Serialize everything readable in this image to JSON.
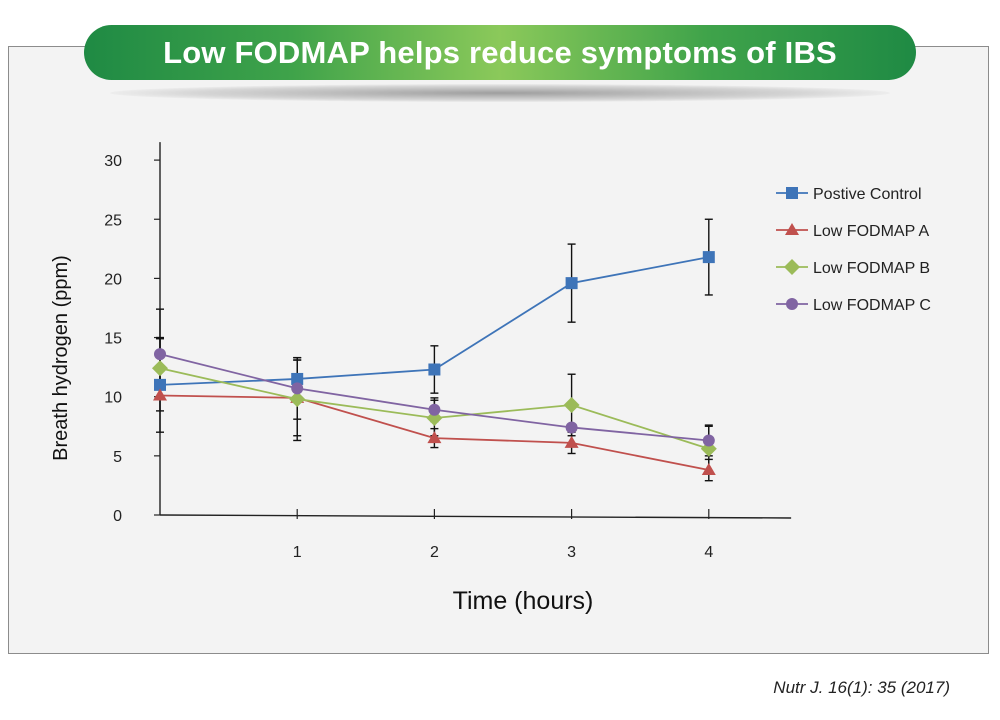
{
  "banner": {
    "title": "Low FODMAP helps reduce symptoms of IBS"
  },
  "citation": "Nutr J. 16(1): 35 (2017)",
  "chart_data": {
    "type": "line",
    "title": "Low FODMAP helps reduce symptoms of IBS",
    "xlabel": "Time (hours)",
    "ylabel": "Breath hydrogen (ppm)",
    "x": [
      0,
      1,
      2,
      3,
      4
    ],
    "x_tick_labels": [
      "1",
      "2",
      "3",
      "4"
    ],
    "y_ticks": [
      0,
      5,
      10,
      15,
      20,
      25,
      30
    ],
    "ylim": [
      0,
      30
    ],
    "xlim": [
      0,
      4.6
    ],
    "grid": false,
    "legend_position": "right",
    "series": [
      {
        "name": "Postive Control",
        "color": "#3e74b8",
        "marker": "square",
        "values": [
          11.0,
          11.5,
          12.3,
          19.6,
          21.8
        ],
        "error": [
          4.0,
          1.6,
          2.0,
          3.3,
          3.2
        ]
      },
      {
        "name": "Low FODMAP A",
        "color": "#c0504d",
        "marker": "triangle",
        "values": [
          10.1,
          9.9,
          6.5,
          6.1,
          3.8
        ],
        "error": [
          1.3,
          3.2,
          0.8,
          0.9,
          0.9
        ]
      },
      {
        "name": "Low FODMAP B",
        "color": "#9bbb59",
        "marker": "diamond",
        "values": [
          12.4,
          9.8,
          8.2,
          9.3,
          5.6
        ],
        "error": [
          2.5,
          3.5,
          1.5,
          2.6,
          1.9
        ]
      },
      {
        "name": "Low FODMAP C",
        "color": "#8064a2",
        "marker": "circle",
        "values": [
          13.6,
          10.7,
          8.9,
          7.4,
          6.3
        ],
        "error": [
          3.8,
          2.6,
          1.0,
          0.0,
          1.3
        ]
      }
    ]
  }
}
